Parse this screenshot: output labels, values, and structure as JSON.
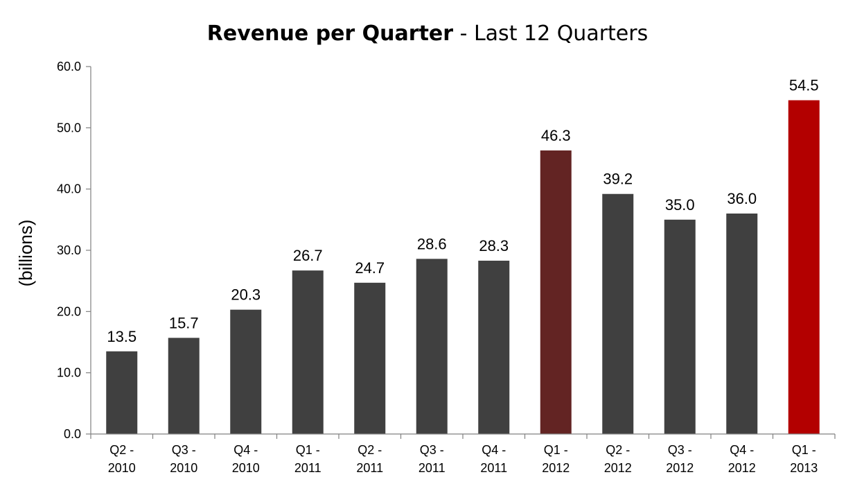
{
  "chart_data": {
    "type": "bar",
    "title": {
      "bold": "Revenue per Quarter",
      "regular": " - Last 12 Quarters"
    },
    "xlabel": "",
    "ylabel": "(billions)",
    "ylim": [
      0,
      60
    ],
    "yticks": [
      "0.0",
      "10.0",
      "20.0",
      "30.0",
      "40.0",
      "50.0",
      "60.0"
    ],
    "ytick_values": [
      0,
      10,
      20,
      30,
      40,
      50,
      60
    ],
    "grid": false,
    "legend": "none",
    "categories": [
      [
        "Q2 -",
        "2010"
      ],
      [
        "Q3 -",
        "2010"
      ],
      [
        "Q4 -",
        "2010"
      ],
      [
        "Q1 -",
        "2011"
      ],
      [
        "Q2 -",
        "2011"
      ],
      [
        "Q3 -",
        "2011"
      ],
      [
        "Q4 -",
        "2011"
      ],
      [
        "Q1 -",
        "2012"
      ],
      [
        "Q2 -",
        "2012"
      ],
      [
        "Q3 -",
        "2012"
      ],
      [
        "Q4 -",
        "2012"
      ],
      [
        "Q1 -",
        "2013"
      ]
    ],
    "values": [
      13.5,
      15.7,
      20.3,
      26.7,
      24.7,
      28.6,
      28.3,
      46.3,
      39.2,
      35.0,
      36.0,
      54.5
    ],
    "value_labels": [
      "13.5",
      "15.7",
      "20.3",
      "26.7",
      "24.7",
      "28.6",
      "28.3",
      "46.3",
      "39.2",
      "35.0",
      "36.0",
      "54.5"
    ],
    "colors": {
      "default": "#404040",
      "highlight_2012": "#632423",
      "highlight_2013": "#b30000",
      "axis": "#808080"
    },
    "bar_colors": [
      "#404040",
      "#404040",
      "#404040",
      "#404040",
      "#404040",
      "#404040",
      "#404040",
      "#632423",
      "#404040",
      "#404040",
      "#404040",
      "#b30000"
    ]
  }
}
